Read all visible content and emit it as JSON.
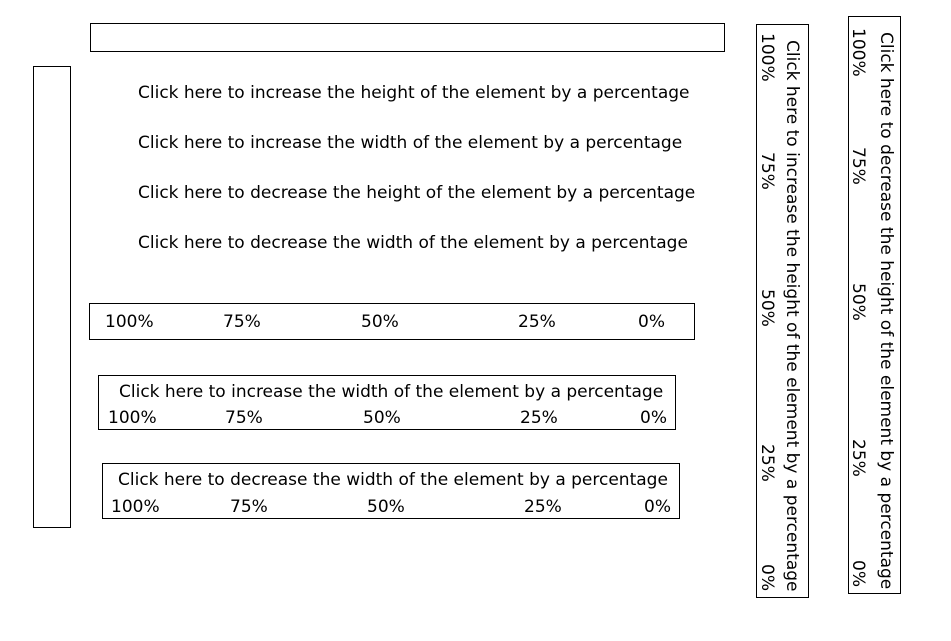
{
  "top_input": {
    "value": "",
    "placeholder": ""
  },
  "actions": {
    "increase_height": "Click here to increase the height of the element by a percentage",
    "increase_width": "Click here to increase the width of the element by a percentage",
    "decrease_height": "Click here to decrease the height of the element by a percentage",
    "decrease_width": "Click here to decrease the width of the element by a percentage"
  },
  "scales": {
    "horizontal_main": [
      "100%",
      "75%",
      "50%",
      "25%",
      "0%"
    ],
    "increase_width_panel": [
      "100%",
      "75%",
      "50%",
      "25%",
      "0%"
    ],
    "decrease_width_panel": [
      "100%",
      "75%",
      "50%",
      "25%",
      "0%"
    ],
    "increase_height_panel": [
      "100%",
      "75%",
      "50%",
      "25%",
      "0%"
    ],
    "decrease_height_panel": [
      "100%",
      "75%",
      "50%",
      "25%",
      "0%"
    ]
  }
}
